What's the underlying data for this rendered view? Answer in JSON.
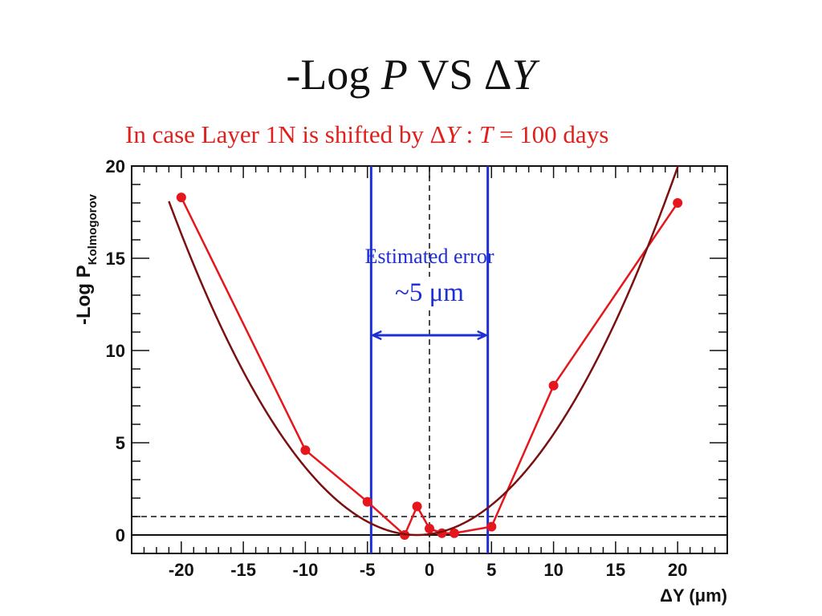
{
  "title": {
    "prefix": "-Log ",
    "var_p": "P",
    "middle": "  VS  Δ",
    "var_y": "Y"
  },
  "subtitle": {
    "prefix": "In case Layer 1N is shifted by Δ",
    "var_y": "Y",
    "middle": " : ",
    "var_t": "T",
    "suffix": " = 100 days"
  },
  "chart_data": {
    "type": "line",
    "xlabel": "ΔY (μm)",
    "ylabel": "-Log P",
    "ylabel_sub": "Kolmogorov",
    "xlim": [
      -24,
      24
    ],
    "ylim": [
      -1,
      20
    ],
    "x_ticks": [
      -20,
      -15,
      -10,
      -5,
      0,
      5,
      10,
      15,
      20
    ],
    "y_ticks": [
      0,
      5,
      10,
      15,
      20
    ],
    "series": [
      {
        "color": "#e5171c",
        "markers": true,
        "points": [
          [
            -20,
            18.3
          ],
          [
            -10,
            4.6
          ],
          [
            -5,
            1.8
          ],
          [
            -2,
            0.0
          ],
          [
            -1,
            1.55
          ],
          [
            0,
            0.35
          ],
          [
            1,
            0.1
          ],
          [
            2,
            0.1
          ],
          [
            5,
            0.45
          ],
          [
            10,
            8.1
          ],
          [
            20,
            18.0
          ]
        ]
      },
      {
        "color": "#7a1010",
        "markers": false,
        "fit": {
          "form": "parabola",
          "a": 0.04522,
          "vertex_x": -1.0,
          "vertex_y": 0.0
        },
        "x_range": [
          -21,
          20.4
        ]
      }
    ],
    "reference_lines": {
      "zero_line_y": 0,
      "dashed_h_y": 1,
      "dashed_v_x": 0,
      "error_band_x": [
        -4.7,
        4.7
      ],
      "error_band_color": "#1e2fd6"
    },
    "annotation": {
      "line1": "Estimated error",
      "line2": "~5 μm",
      "color": "#1e2fd6"
    }
  }
}
